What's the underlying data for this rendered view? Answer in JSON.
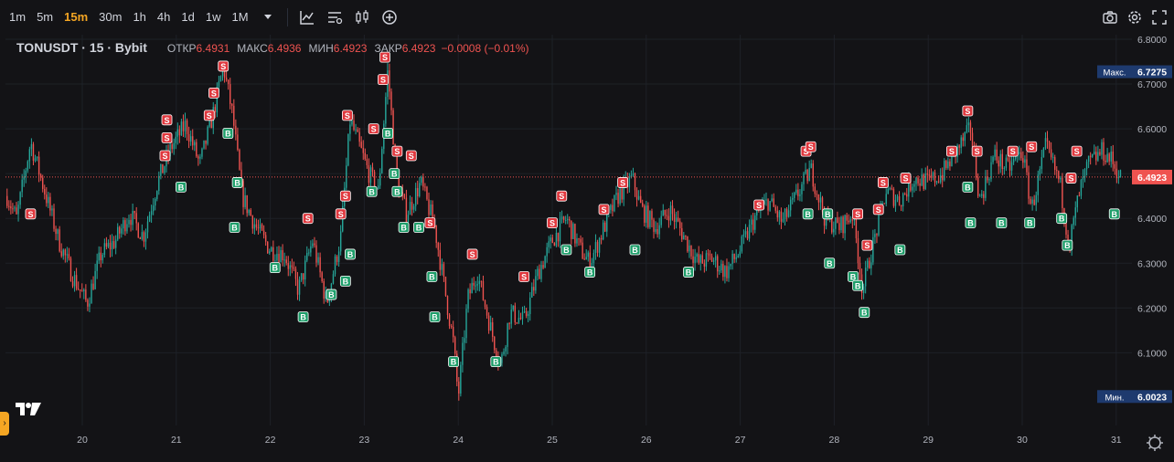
{
  "toolbar": {
    "timeframes": [
      {
        "label": "1m",
        "active": false
      },
      {
        "label": "5m",
        "active": false
      },
      {
        "label": "15m",
        "active": true
      },
      {
        "label": "30m",
        "active": false
      },
      {
        "label": "1h",
        "active": false
      },
      {
        "label": "4h",
        "active": false
      },
      {
        "label": "1d",
        "active": false
      },
      {
        "label": "1w",
        "active": false
      },
      {
        "label": "1M",
        "active": false
      }
    ],
    "icons": [
      "chevron-down-icon",
      "indicators-icon",
      "compare-icon",
      "chart-type-icon",
      "add-icon"
    ],
    "right_icons": [
      "camera-icon",
      "settings-icon",
      "fullscreen-icon"
    ]
  },
  "legend": {
    "symbol": "TONUSDT · 15 · Bybit",
    "open_label": "ОТКР",
    "open": "6.4931",
    "high_label": "МАКС",
    "high": "6.4936",
    "low_label": "МИН",
    "low": "6.4923",
    "close_label": "ЗАКР",
    "close": "6.4923",
    "change": "−0.0008 (−0.01%)"
  },
  "chart_data": {
    "type": "candlestick",
    "symbol": "TONUSDT",
    "interval": "15",
    "exchange": "Bybit",
    "y_ticks": [
      "6.8000",
      "6.7000",
      "6.6000",
      "6.5000",
      "6.4000",
      "6.3000",
      "6.2000",
      "6.1000"
    ],
    "ylim": [
      6.0,
      6.8
    ],
    "x_ticks": [
      "20",
      "21",
      "22",
      "23",
      "24",
      "25",
      "26",
      "27",
      "28",
      "29",
      "30",
      "31"
    ],
    "labels": {
      "max_label": "Макс.",
      "max_value": "6.7275",
      "min_label": "Мин.",
      "min_value": "6.0023",
      "last_value": "6.4923"
    },
    "price_path": [
      [
        19.2,
        6.45
      ],
      [
        19.3,
        6.4
      ],
      [
        19.45,
        6.57
      ],
      [
        19.6,
        6.46
      ],
      [
        19.75,
        6.35
      ],
      [
        19.9,
        6.27
      ],
      [
        20.05,
        6.21
      ],
      [
        20.2,
        6.32
      ],
      [
        20.35,
        6.35
      ],
      [
        20.5,
        6.41
      ],
      [
        20.65,
        6.36
      ],
      [
        20.8,
        6.48
      ],
      [
        20.95,
        6.56
      ],
      [
        21.1,
        6.61
      ],
      [
        21.25,
        6.52
      ],
      [
        21.4,
        6.64
      ],
      [
        21.5,
        6.74
      ],
      [
        21.6,
        6.63
      ],
      [
        21.7,
        6.45
      ],
      [
        21.85,
        6.38
      ],
      [
        22.0,
        6.33
      ],
      [
        22.15,
        6.32
      ],
      [
        22.3,
        6.24
      ],
      [
        22.45,
        6.35
      ],
      [
        22.6,
        6.21
      ],
      [
        22.75,
        6.36
      ],
      [
        22.85,
        6.62
      ],
      [
        22.95,
        6.56
      ],
      [
        23.05,
        6.5
      ],
      [
        23.15,
        6.46
      ],
      [
        23.25,
        6.73
      ],
      [
        23.35,
        6.48
      ],
      [
        23.45,
        6.41
      ],
      [
        23.6,
        6.48
      ],
      [
        23.75,
        6.38
      ],
      [
        23.85,
        6.25
      ],
      [
        23.95,
        6.12
      ],
      [
        24.0,
        6.0
      ],
      [
        24.1,
        6.22
      ],
      [
        24.2,
        6.28
      ],
      [
        24.35,
        6.15
      ],
      [
        24.45,
        6.07
      ],
      [
        24.55,
        6.19
      ],
      [
        24.7,
        6.17
      ],
      [
        24.85,
        6.28
      ],
      [
        25.0,
        6.35
      ],
      [
        25.15,
        6.4
      ],
      [
        25.3,
        6.33
      ],
      [
        25.4,
        6.3
      ],
      [
        25.55,
        6.38
      ],
      [
        25.7,
        6.45
      ],
      [
        25.85,
        6.49
      ],
      [
        25.95,
        6.42
      ],
      [
        26.1,
        6.38
      ],
      [
        26.25,
        6.42
      ],
      [
        26.4,
        6.36
      ],
      [
        26.55,
        6.3
      ],
      [
        26.7,
        6.31
      ],
      [
        26.85,
        6.28
      ],
      [
        27.0,
        6.33
      ],
      [
        27.15,
        6.4
      ],
      [
        27.3,
        6.44
      ],
      [
        27.45,
        6.39
      ],
      [
        27.6,
        6.45
      ],
      [
        27.75,
        6.51
      ],
      [
        27.9,
        6.4
      ],
      [
        28.05,
        6.38
      ],
      [
        28.2,
        6.41
      ],
      [
        28.3,
        6.24
      ],
      [
        28.4,
        6.33
      ],
      [
        28.55,
        6.46
      ],
      [
        28.7,
        6.44
      ],
      [
        28.85,
        6.49
      ],
      [
        29.0,
        6.48
      ],
      [
        29.15,
        6.5
      ],
      [
        29.3,
        6.55
      ],
      [
        29.45,
        6.6
      ],
      [
        29.55,
        6.44
      ],
      [
        29.7,
        6.54
      ],
      [
        29.85,
        6.51
      ],
      [
        30.0,
        6.55
      ],
      [
        30.1,
        6.42
      ],
      [
        30.25,
        6.56
      ],
      [
        30.4,
        6.48
      ],
      [
        30.5,
        6.34
      ],
      [
        30.6,
        6.45
      ],
      [
        30.7,
        6.52
      ],
      [
        30.85,
        6.55
      ],
      [
        30.95,
        6.53
      ],
      [
        31.05,
        6.49
      ]
    ],
    "sell_markers": [
      [
        19.45,
        6.41
      ],
      [
        20.9,
        6.62
      ],
      [
        20.9,
        6.58
      ],
      [
        20.88,
        6.54
      ],
      [
        21.35,
        6.63
      ],
      [
        21.4,
        6.68
      ],
      [
        21.5,
        6.74
      ],
      [
        22.4,
        6.4
      ],
      [
        22.75,
        6.41
      ],
      [
        22.8,
        6.45
      ],
      [
        22.82,
        6.63
      ],
      [
        23.1,
        6.6
      ],
      [
        23.2,
        6.71
      ],
      [
        23.22,
        6.76
      ],
      [
        23.35,
        6.55
      ],
      [
        23.5,
        6.54
      ],
      [
        23.7,
        6.39
      ],
      [
        24.15,
        6.32
      ],
      [
        24.7,
        6.27
      ],
      [
        25.1,
        6.45
      ],
      [
        25.0,
        6.39
      ],
      [
        25.55,
        6.42
      ],
      [
        25.75,
        6.48
      ],
      [
        27.2,
        6.43
      ],
      [
        27.7,
        6.55
      ],
      [
        27.75,
        6.56
      ],
      [
        28.25,
        6.41
      ],
      [
        28.35,
        6.34
      ],
      [
        28.47,
        6.42
      ],
      [
        28.52,
        6.48
      ],
      [
        28.76,
        6.49
      ],
      [
        29.25,
        6.55
      ],
      [
        29.42,
        6.64
      ],
      [
        29.52,
        6.55
      ],
      [
        29.9,
        6.55
      ],
      [
        30.1,
        6.56
      ],
      [
        30.58,
        6.55
      ],
      [
        30.52,
        6.49
      ]
    ],
    "buy_markers": [
      [
        21.05,
        6.47
      ],
      [
        21.55,
        6.59
      ],
      [
        21.65,
        6.48
      ],
      [
        21.62,
        6.38
      ],
      [
        22.05,
        6.29
      ],
      [
        22.35,
        6.18
      ],
      [
        22.65,
        6.23
      ],
      [
        22.8,
        6.26
      ],
      [
        22.85,
        6.32
      ],
      [
        23.08,
        6.46
      ],
      [
        23.25,
        6.59
      ],
      [
        23.32,
        6.5
      ],
      [
        23.35,
        6.46
      ],
      [
        23.42,
        6.38
      ],
      [
        23.58,
        6.38
      ],
      [
        23.72,
        6.27
      ],
      [
        23.75,
        6.18
      ],
      [
        23.95,
        6.08
      ],
      [
        24.4,
        6.08
      ],
      [
        25.15,
        6.33
      ],
      [
        25.4,
        6.28
      ],
      [
        25.88,
        6.33
      ],
      [
        26.45,
        6.28
      ],
      [
        27.72,
        6.41
      ],
      [
        27.93,
        6.41
      ],
      [
        27.95,
        6.3
      ],
      [
        28.2,
        6.27
      ],
      [
        28.25,
        6.25
      ],
      [
        28.32,
        6.19
      ],
      [
        28.7,
        6.33
      ],
      [
        29.42,
        6.47
      ],
      [
        29.45,
        6.39
      ],
      [
        29.78,
        6.39
      ],
      [
        30.08,
        6.39
      ],
      [
        30.42,
        6.4
      ],
      [
        30.48,
        6.34
      ],
      [
        30.98,
        6.41
      ]
    ],
    "marker_labels": {
      "sell": "S",
      "buy": "B"
    },
    "colors": {
      "up": "#26a69a",
      "down": "#ef5350",
      "background": "#131316",
      "grid": "#1e2127",
      "axis_text": "#b2b5be",
      "last_price_bg": "#ef5350",
      "minmax_bg": "#1e3a6e",
      "sell_marker": "#e0383e",
      "buy_marker": "#1e9e6a"
    }
  }
}
